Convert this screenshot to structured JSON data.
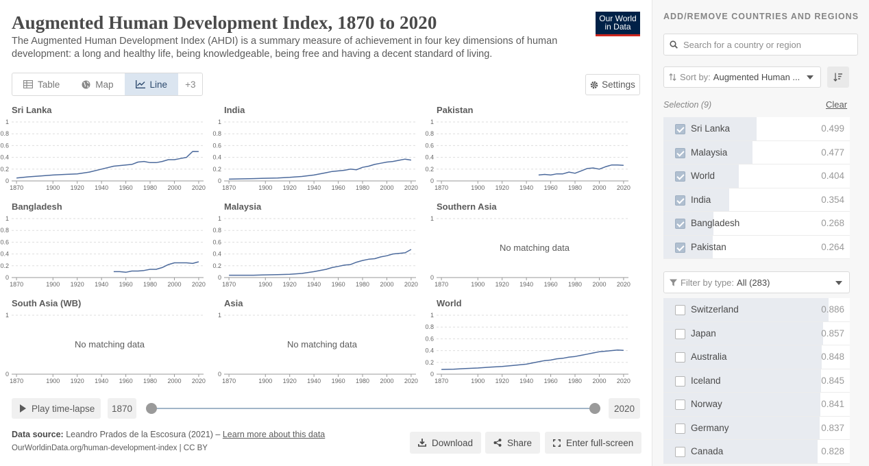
{
  "header": {
    "title": "Augmented Human Development Index, 1870 to 2020",
    "subtitle": "The Augmented Human Development Index (AHDI) is a summary measure of achievement in four key dimensions of human development: a long and healthy life, being knowledgeable, being free and having a decent standard of living.",
    "logo_line1": "Our World",
    "logo_line2": "in Data"
  },
  "tabs": [
    {
      "label": "Table",
      "icon": "table-icon"
    },
    {
      "label": "Map",
      "icon": "globe-icon"
    },
    {
      "label": "Line",
      "icon": "line-chart-icon"
    },
    {
      "label": "+3"
    }
  ],
  "settings_label": "Settings",
  "no_data_label": "No matching data",
  "chart_data": [
    {
      "type": "line",
      "title": "Sri Lanka",
      "x": [
        1870,
        1880,
        1890,
        1900,
        1910,
        1920,
        1930,
        1940,
        1950,
        1955,
        1960,
        1965,
        1970,
        1975,
        1980,
        1985,
        1990,
        1995,
        2000,
        2005,
        2010,
        2015,
        2020
      ],
      "y": [
        0.05,
        0.07,
        0.085,
        0.1,
        0.11,
        0.12,
        0.15,
        0.2,
        0.25,
        0.26,
        0.27,
        0.28,
        0.32,
        0.33,
        0.31,
        0.31,
        0.33,
        0.36,
        0.36,
        0.38,
        0.4,
        0.5,
        0.499
      ],
      "ylim": [
        0,
        1
      ],
      "yticks": [
        "0",
        "0.2",
        "0.4",
        "0.6",
        "0.8",
        "1"
      ],
      "xticks": [
        "1870",
        "1900",
        "1920",
        "1940",
        "1960",
        "1980",
        "2000",
        "2020"
      ]
    },
    {
      "type": "line",
      "title": "India",
      "x": [
        1870,
        1880,
        1890,
        1900,
        1910,
        1920,
        1930,
        1940,
        1950,
        1955,
        1960,
        1965,
        1970,
        1975,
        1980,
        1985,
        1990,
        1995,
        2000,
        2005,
        2010,
        2015,
        2020
      ],
      "y": [
        0.03,
        0.035,
        0.04,
        0.045,
        0.05,
        0.06,
        0.075,
        0.1,
        0.14,
        0.16,
        0.17,
        0.18,
        0.2,
        0.19,
        0.23,
        0.25,
        0.28,
        0.3,
        0.32,
        0.33,
        0.35,
        0.37,
        0.354
      ],
      "ylim": [
        0,
        1
      ],
      "yticks": [
        "0",
        "0.2",
        "0.4",
        "0.6",
        "0.8",
        "1"
      ],
      "xticks": [
        "1870",
        "1900",
        "1920",
        "1940",
        "1960",
        "1980",
        "2000",
        "2020"
      ]
    },
    {
      "type": "line",
      "title": "Pakistan",
      "x": [
        1950,
        1955,
        1960,
        1965,
        1970,
        1975,
        1980,
        1985,
        1990,
        1995,
        2000,
        2005,
        2010,
        2015,
        2020
      ],
      "y": [
        0.1,
        0.11,
        0.1,
        0.12,
        0.12,
        0.15,
        0.13,
        0.17,
        0.21,
        0.22,
        0.2,
        0.24,
        0.27,
        0.27,
        0.264
      ],
      "ylim": [
        0,
        1
      ],
      "yticks": [
        "0",
        "0.2",
        "0.4",
        "0.6",
        "0.8",
        "1"
      ],
      "xticks": [
        "1870",
        "1900",
        "1920",
        "1940",
        "1960",
        "1980",
        "2000",
        "2020"
      ]
    },
    {
      "type": "line",
      "title": "Bangladesh",
      "x": [
        1950,
        1955,
        1960,
        1965,
        1970,
        1975,
        1980,
        1985,
        1990,
        1995,
        2000,
        2005,
        2010,
        2015,
        2020
      ],
      "y": [
        0.1,
        0.1,
        0.09,
        0.11,
        0.11,
        0.12,
        0.14,
        0.14,
        0.17,
        0.22,
        0.25,
        0.25,
        0.25,
        0.24,
        0.268
      ],
      "ylim": [
        0,
        1
      ],
      "yticks": [
        "0",
        "0.2",
        "0.4",
        "0.6",
        "0.8",
        "1"
      ],
      "xticks": [
        "1870",
        "1900",
        "1920",
        "1940",
        "1960",
        "1980",
        "2000",
        "2020"
      ]
    },
    {
      "type": "line",
      "title": "Malaysia",
      "x": [
        1870,
        1880,
        1890,
        1900,
        1910,
        1920,
        1930,
        1940,
        1950,
        1955,
        1960,
        1965,
        1970,
        1975,
        1980,
        1985,
        1990,
        1995,
        2000,
        2005,
        2010,
        2015,
        2020
      ],
      "y": [
        0.04,
        0.04,
        0.04,
        0.045,
        0.05,
        0.055,
        0.07,
        0.1,
        0.14,
        0.17,
        0.19,
        0.21,
        0.22,
        0.26,
        0.29,
        0.31,
        0.32,
        0.35,
        0.37,
        0.4,
        0.41,
        0.42,
        0.477
      ],
      "ylim": [
        0,
        1
      ],
      "yticks": [
        "0",
        "0.2",
        "0.4",
        "0.6",
        "0.8",
        "1"
      ],
      "xticks": [
        "1870",
        "1900",
        "1920",
        "1940",
        "1960",
        "1980",
        "2000",
        "2020"
      ]
    },
    {
      "type": "line",
      "title": "Southern Asia",
      "x": [],
      "y": [],
      "ylim": [
        0,
        1
      ],
      "yticks": [
        "0",
        "1"
      ],
      "xticks": [
        "1870",
        "1900",
        "1920",
        "1940",
        "1960",
        "1980",
        "2000",
        "2020"
      ],
      "no_data": true
    },
    {
      "type": "line",
      "title": "South Asia (WB)",
      "x": [],
      "y": [],
      "ylim": [
        0,
        1
      ],
      "yticks": [
        "0",
        "1"
      ],
      "xticks": [
        "1870",
        "1900",
        "1920",
        "1940",
        "1960",
        "1980",
        "2000",
        "2020"
      ],
      "no_data": true
    },
    {
      "type": "line",
      "title": "Asia",
      "x": [],
      "y": [],
      "ylim": [
        0,
        1
      ],
      "yticks": [
        "0",
        "1"
      ],
      "xticks": [
        "1870",
        "1900",
        "1920",
        "1940",
        "1960",
        "1980",
        "2000",
        "2020"
      ],
      "no_data": true
    },
    {
      "type": "line",
      "title": "World",
      "x": [
        1870,
        1880,
        1890,
        1900,
        1910,
        1920,
        1930,
        1940,
        1950,
        1955,
        1960,
        1965,
        1970,
        1975,
        1980,
        1985,
        1990,
        1995,
        2000,
        2005,
        2010,
        2015,
        2020
      ],
      "y": [
        0.08,
        0.085,
        0.095,
        0.105,
        0.12,
        0.13,
        0.15,
        0.17,
        0.21,
        0.23,
        0.24,
        0.26,
        0.27,
        0.29,
        0.3,
        0.32,
        0.34,
        0.36,
        0.38,
        0.39,
        0.4,
        0.41,
        0.404
      ],
      "ylim": [
        0,
        1
      ],
      "yticks": [
        "0",
        "0.2",
        "0.4",
        "0.6",
        "0.8",
        "1"
      ],
      "xticks": [
        "1870",
        "1900",
        "1920",
        "1940",
        "1960",
        "1980",
        "2000",
        "2020"
      ]
    }
  ],
  "timeline": {
    "play_label": "Play time-lapse",
    "start_year": "1870",
    "end_year": "2020"
  },
  "footer": {
    "source_label": "Data source:",
    "source_text": "Leandro Prados de la Escosura (2021) –",
    "learn_more": "Learn more about this data",
    "url": "OurWorldinData.org/human-development-index | CC BY",
    "download": "Download",
    "share": "Share",
    "fullscreen": "Enter full-screen"
  },
  "sidebar": {
    "heading": "ADD/REMOVE COUNTRIES AND REGIONS",
    "search_placeholder": "Search for a country or region",
    "sort_label": "Sort by:",
    "sort_value": "Augmented Human ...",
    "selection_label": "Selection (9)",
    "clear_label": "Clear",
    "selected": [
      {
        "name": "Sri Lanka",
        "value": "0.499",
        "fraction": 0.499
      },
      {
        "name": "Malaysia",
        "value": "0.477",
        "fraction": 0.477
      },
      {
        "name": "World",
        "value": "0.404",
        "fraction": 0.404
      },
      {
        "name": "India",
        "value": "0.354",
        "fraction": 0.354
      },
      {
        "name": "Bangladesh",
        "value": "0.268",
        "fraction": 0.268
      },
      {
        "name": "Pakistan",
        "value": "0.264",
        "fraction": 0.264
      }
    ],
    "filter_label": "Filter by type:",
    "filter_value": "All (283)",
    "others": [
      {
        "name": "Switzerland",
        "value": "0.886",
        "fraction": 0.886
      },
      {
        "name": "Japan",
        "value": "0.857",
        "fraction": 0.857
      },
      {
        "name": "Australia",
        "value": "0.848",
        "fraction": 0.848
      },
      {
        "name": "Iceland",
        "value": "0.845",
        "fraction": 0.845
      },
      {
        "name": "Norway",
        "value": "0.841",
        "fraction": 0.841
      },
      {
        "name": "Germany",
        "value": "0.837",
        "fraction": 0.837
      },
      {
        "name": "Canada",
        "value": "0.828",
        "fraction": 0.828
      }
    ]
  },
  "colors": {
    "line": "#4c6a9c",
    "accent": "#2d4a6e"
  }
}
